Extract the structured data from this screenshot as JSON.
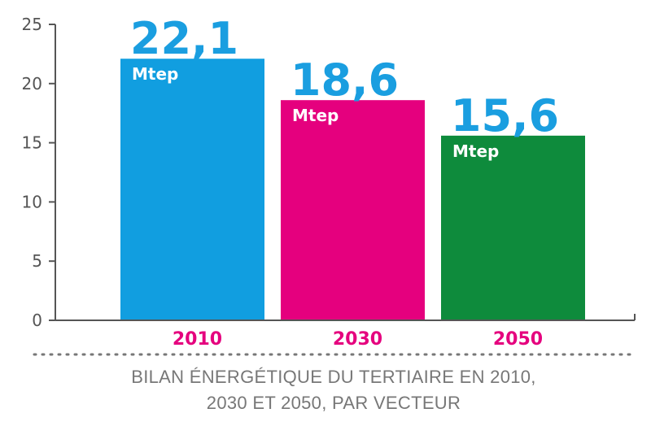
{
  "chart_data": {
    "type": "bar",
    "categories": [
      "2010",
      "2030",
      "2050"
    ],
    "values": [
      22.1,
      18.6,
      15.6
    ],
    "value_labels": [
      "22,1",
      "18,6",
      "15,6"
    ],
    "unit": "Mtep",
    "ylim": [
      0,
      25
    ],
    "yticks": [
      0,
      5,
      10,
      15,
      20,
      25
    ],
    "colors": [
      "#119ee0",
      "#e5007e",
      "#0e8b3c"
    ],
    "category_label_color": "#e5007e",
    "value_label_color": "#1a9ee0",
    "grid": false,
    "caption_lines": [
      "BILAN ÉNERGÉTIQUE DU TERTIAIRE EN 2010,",
      "2030 ET 2050, PAR VECTEUR"
    ]
  }
}
